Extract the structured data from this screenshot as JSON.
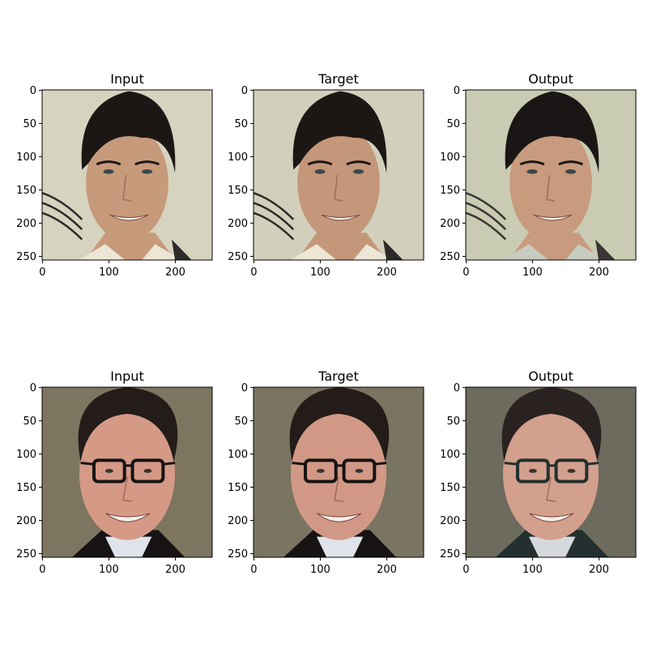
{
  "chart_data": [
    {
      "type": "image",
      "row": 1,
      "title": "Input",
      "subject": "smiling man with dark hair",
      "xlim": [
        0,
        255
      ],
      "ylim": [
        255,
        0
      ],
      "xticks": [
        0,
        100,
        200
      ],
      "yticks": [
        0,
        50,
        100,
        150,
        200,
        250
      ],
      "palette": {
        "bg": "#d6d3bf",
        "face": "#c79a7c",
        "hair": "#1c1714",
        "shirt": "#ece6d6",
        "dark": "#2e2a28"
      }
    },
    {
      "type": "image",
      "row": 1,
      "title": "Target",
      "subject": "smiling man with dark hair",
      "xlim": [
        0,
        255
      ],
      "ylim": [
        255,
        0
      ],
      "xticks": [
        0,
        100,
        200
      ],
      "yticks": [
        0,
        50,
        100,
        150,
        200,
        250
      ],
      "palette": {
        "bg": "#d2d0bc",
        "face": "#c4977a",
        "hair": "#1c1714",
        "shirt": "#ece6d6",
        "dark": "#2e2a28"
      }
    },
    {
      "type": "image",
      "row": 1,
      "title": "Output",
      "subject": "smiling man with dark hair (generated)",
      "xlim": [
        0,
        255
      ],
      "ylim": [
        255,
        0
      ],
      "xticks": [
        0,
        100,
        200
      ],
      "yticks": [
        0,
        50,
        100,
        150,
        200,
        250
      ],
      "palette": {
        "bg": "#c9ccb2",
        "face": "#c89a7e",
        "hair": "#1a1615",
        "shirt": "#c8cbc0",
        "dark": "#3a3532"
      }
    },
    {
      "type": "image",
      "row": 2,
      "title": "Input",
      "subject": "smiling man with glasses",
      "xlim": [
        0,
        255
      ],
      "ylim": [
        255,
        0
      ],
      "xticks": [
        0,
        100,
        200
      ],
      "yticks": [
        0,
        50,
        100,
        150,
        200,
        250
      ],
      "palette": {
        "bg": "#7d7560",
        "face": "#d49a86",
        "hair": "#231c19",
        "shirt": "#dfe3ea",
        "dark": "#171314"
      }
    },
    {
      "type": "image",
      "row": 2,
      "title": "Target",
      "subject": "smiling man with glasses",
      "xlim": [
        0,
        255
      ],
      "ylim": [
        255,
        0
      ],
      "xticks": [
        0,
        100,
        200
      ],
      "yticks": [
        0,
        50,
        100,
        150,
        200,
        250
      ],
      "palette": {
        "bg": "#7a7462",
        "face": "#d19985",
        "hair": "#231c19",
        "shirt": "#dfe3ea",
        "dark": "#171314"
      }
    },
    {
      "type": "image",
      "row": 2,
      "title": "Output",
      "subject": "smiling man with glasses (generated)",
      "xlim": [
        0,
        255
      ],
      "ylim": [
        255,
        0
      ],
      "xticks": [
        0,
        100,
        200
      ],
      "yticks": [
        0,
        50,
        100,
        150,
        200,
        250
      ],
      "palette": {
        "bg": "#6d6a5e",
        "face": "#d3a08e",
        "hair": "#2a2220",
        "shirt": "#d6d9dc",
        "dark": "#23302f"
      }
    }
  ]
}
